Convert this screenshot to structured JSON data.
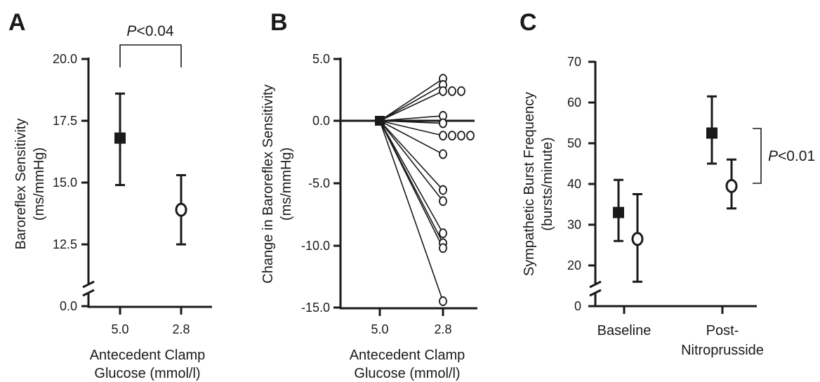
{
  "chart_data": [
    {
      "panel": "A",
      "type": "scatter",
      "ylabel": "Baroreflex Sensitivity",
      "ylabel_unit": "(ms/mmHg)",
      "xlabel": "Antecedent Clamp",
      "xlabel_line2": "Glucose (mmol/l)",
      "yticks": [
        "0.0",
        "12.5",
        "15.0",
        "17.5",
        "20.0"
      ],
      "xticks": [
        "5.0",
        "2.8"
      ],
      "axis_break": true,
      "points": [
        {
          "x": "5.0",
          "y": 16.8,
          "low": 14.9,
          "high": 18.6,
          "marker": "filled-square"
        },
        {
          "x": "2.8",
          "y": 13.9,
          "low": 12.5,
          "high": 15.3,
          "marker": "open-circle"
        }
      ],
      "annotation": {
        "italic": "P",
        "text": "<0.04"
      }
    },
    {
      "panel": "B",
      "type": "line",
      "ylabel": "Change in Baroreflex Sensitivity",
      "ylabel_unit": "(ms/mmHg)",
      "xlabel": "Antecedent Clamp",
      "xlabel_line2": "Glucose (mmol/l)",
      "yticks": [
        "5.0",
        "0.0",
        "-5.0",
        "-10.0",
        "-15.0"
      ],
      "xticks": [
        "5.0",
        "2.8"
      ],
      "ylim": [
        -15,
        5
      ],
      "start": {
        "x": "5.0",
        "y": 0.0,
        "marker": "filled-square"
      },
      "end_points": [
        {
          "y": 3.4,
          "offset": 0
        },
        {
          "y": 2.9,
          "offset": 0
        },
        {
          "y": 2.4,
          "offset": 0
        },
        {
          "y": 2.4,
          "offset": 1
        },
        {
          "y": 2.4,
          "offset": 2
        },
        {
          "y": 0.4,
          "offset": 0
        },
        {
          "y": -0.2,
          "offset": 0
        },
        {
          "y": -1.2,
          "offset": 0
        },
        {
          "y": -1.2,
          "offset": 1
        },
        {
          "y": -1.2,
          "offset": 2
        },
        {
          "y": -1.2,
          "offset": 3
        },
        {
          "y": -2.7,
          "offset": 0
        },
        {
          "y": -5.6,
          "offset": 0
        },
        {
          "y": -6.5,
          "offset": 0
        },
        {
          "y": -9.1,
          "offset": 0
        },
        {
          "y": -9.9,
          "offset": 0
        },
        {
          "y": -10.3,
          "offset": 0
        },
        {
          "y": -14.6,
          "offset": 0
        }
      ]
    },
    {
      "panel": "C",
      "type": "scatter",
      "ylabel": "Sympathetic Burst Frequency",
      "ylabel_unit": "(bursts/minute)",
      "yticks": [
        "0",
        "20",
        "30",
        "40",
        "50",
        "60",
        "70"
      ],
      "categories": [
        "Baseline",
        "Post-",
        "Nitroprusside"
      ],
      "axis_break": true,
      "points": [
        {
          "x": "Baseline",
          "side": "left",
          "y": 33,
          "low": 26,
          "high": 41,
          "marker": "filled-square"
        },
        {
          "x": "Baseline",
          "side": "right",
          "y": 26.5,
          "low": 16,
          "high": 37.5,
          "marker": "open-circle"
        },
        {
          "x": "Post-Nitroprusside",
          "side": "left",
          "y": 52.5,
          "low": 45,
          "high": 61.5,
          "marker": "filled-square"
        },
        {
          "x": "Post-Nitroprusside",
          "side": "right",
          "y": 39.5,
          "low": 34,
          "high": 46,
          "marker": "open-circle"
        }
      ],
      "annotation": {
        "italic": "P",
        "text": "<0.01"
      }
    }
  ]
}
